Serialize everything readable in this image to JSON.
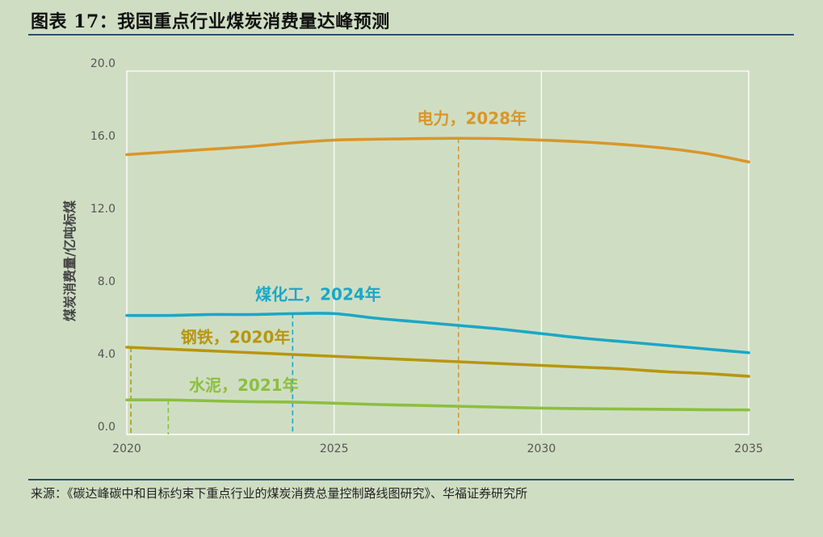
{
  "page": {
    "title": "图表 17：我国重点行业煤炭消费量达峰预测",
    "source": "来源：《碳达峰碳中和目标约束下重点行业的煤炭消费总量控制路线图研究》、华福证券研究所"
  },
  "chart_data": {
    "type": "line",
    "title": "",
    "xlabel": "",
    "ylabel": "煤炭消费量/亿吨标煤",
    "xlim": [
      2020,
      2035
    ],
    "ylim": [
      0,
      20
    ],
    "x_ticks": [
      2020,
      2025,
      2030,
      2035
    ],
    "y_ticks": [
      0,
      4,
      8,
      12,
      16,
      20
    ],
    "y_tick_labels": [
      "0.0",
      "4.0",
      "8.0",
      "12.0",
      "16.0",
      "20.0"
    ],
    "grid": "vertical",
    "series": [
      {
        "name": "电力",
        "color": "#d9962b",
        "x": [
          2020,
          2021,
          2022,
          2023,
          2024,
          2025,
          2026,
          2027,
          2028,
          2029,
          2030,
          2031,
          2032,
          2033,
          2034,
          2035
        ],
        "y": [
          15.4,
          15.55,
          15.7,
          15.85,
          16.05,
          16.2,
          16.25,
          16.28,
          16.3,
          16.28,
          16.2,
          16.1,
          15.95,
          15.75,
          15.45,
          15.0
        ]
      },
      {
        "name": "煤化工",
        "color": "#1ba7c6",
        "x": [
          2020,
          2021,
          2022,
          2023,
          2024,
          2025,
          2026,
          2027,
          2028,
          2029,
          2030,
          2031,
          2032,
          2033,
          2034,
          2035
        ],
        "y": [
          6.55,
          6.55,
          6.6,
          6.6,
          6.65,
          6.65,
          6.4,
          6.2,
          6.0,
          5.8,
          5.55,
          5.3,
          5.1,
          4.9,
          4.7,
          4.5
        ]
      },
      {
        "name": "钢铁",
        "color": "#b8960e",
        "x": [
          2020,
          2021,
          2022,
          2023,
          2024,
          2025,
          2026,
          2027,
          2028,
          2029,
          2030,
          2031,
          2032,
          2033,
          2034,
          2035
        ],
        "y": [
          4.8,
          4.7,
          4.6,
          4.5,
          4.4,
          4.3,
          4.2,
          4.1,
          4.0,
          3.9,
          3.8,
          3.7,
          3.6,
          3.45,
          3.35,
          3.2
        ]
      },
      {
        "name": "水泥",
        "color": "#8cbf3f",
        "x": [
          2020,
          2021,
          2022,
          2023,
          2024,
          2025,
          2026,
          2027,
          2028,
          2029,
          2030,
          2031,
          2032,
          2033,
          2034,
          2035
        ],
        "y": [
          1.9,
          1.9,
          1.85,
          1.8,
          1.78,
          1.72,
          1.65,
          1.6,
          1.55,
          1.5,
          1.45,
          1.42,
          1.4,
          1.38,
          1.36,
          1.35
        ]
      }
    ],
    "annotations": [
      {
        "text": "电力，2028年",
        "color": "#d9962b",
        "peak_x": 2028,
        "peak_y": 16.3,
        "label_x": 2027.0,
        "label_y": 17.1
      },
      {
        "text": "煤化工，2024年",
        "color": "#1ba7c6",
        "peak_x": 2024,
        "peak_y": 6.65,
        "label_x": 2023.1,
        "label_y": 7.4
      },
      {
        "text": "钢铁，2020年",
        "color": "#b8960e",
        "peak_x": 2020.1,
        "peak_y": 4.8,
        "label_x": 2021.3,
        "label_y": 5.05
      },
      {
        "text": "水泥，2021年",
        "color": "#8cbf3f",
        "peak_x": 2021,
        "peak_y": 1.9,
        "label_x": 2021.5,
        "label_y": 2.4
      }
    ]
  }
}
